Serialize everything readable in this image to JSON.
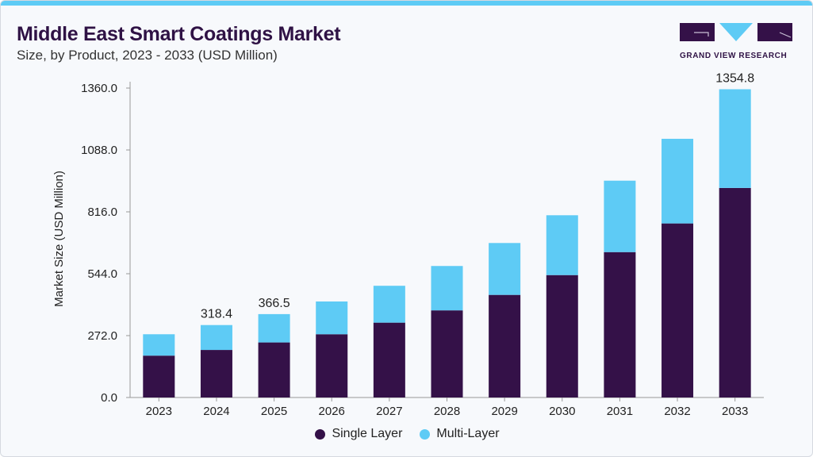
{
  "header": {
    "title": "Middle East Smart Coatings Market",
    "subtitle": "Size, by Product, 2023 - 2033 (USD Million)"
  },
  "logo": {
    "text": "GRAND VIEW RESEARCH"
  },
  "colors": {
    "single_layer": "#341148",
    "multi_layer": "#5ecbf5",
    "accent": "#5ecbf5"
  },
  "chart_data": {
    "type": "bar",
    "stacked": true,
    "title": "Middle East Smart Coatings Market",
    "subtitle": "Size, by Product, 2023 - 2033 (USD Million)",
    "xlabel": "",
    "ylabel": "Market Size (USD Million)",
    "ylim": [
      0,
      1360
    ],
    "yticks": [
      "0.0",
      "272.0",
      "544.0",
      "816.0",
      "1088.0",
      "1360.0"
    ],
    "categories": [
      "2023",
      "2024",
      "2025",
      "2026",
      "2027",
      "2028",
      "2029",
      "2030",
      "2031",
      "2032",
      "2033"
    ],
    "series": [
      {
        "name": "Single Layer",
        "values": [
          184,
          209,
          242,
          278,
          329,
          383,
          451,
          538,
          639,
          765,
          921
        ]
      },
      {
        "name": "Multi-Layer",
        "values": [
          94,
          109.4,
          124.5,
          144,
          162,
          195,
          228,
          263,
          314,
          372,
          433.8
        ]
      }
    ],
    "data_labels": [
      {
        "category": "2024",
        "text": "318.4"
      },
      {
        "category": "2025",
        "text": "366.5"
      },
      {
        "category": "2033",
        "text": "1354.8"
      }
    ],
    "grid": false,
    "legend": "bottom"
  }
}
